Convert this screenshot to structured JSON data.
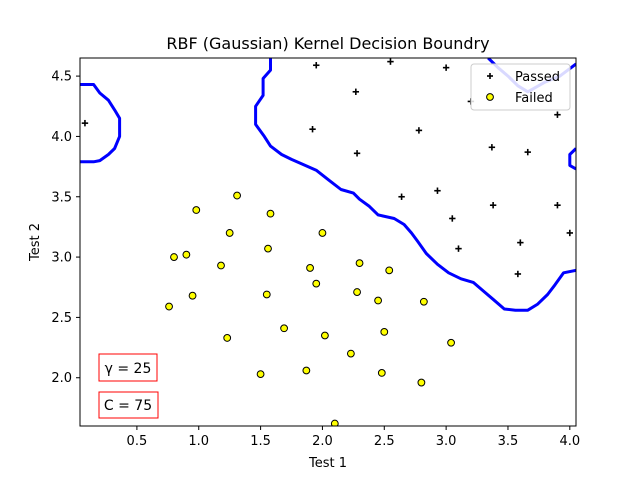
{
  "chart_data": {
    "type": "scatter",
    "title": "RBF (Gaussian)  Kernel Decision Boundry",
    "xlabel": "Test 1",
    "ylabel": "Test 2",
    "xlim": [
      0.04,
      4.05
    ],
    "ylim": [
      1.6,
      4.65
    ],
    "xticks": [
      "0.5",
      "1.0",
      "1.5",
      "2.0",
      "2.5",
      "3.0",
      "3.5",
      "4.0"
    ],
    "yticks": [
      "2.0",
      "2.5",
      "3.0",
      "3.5",
      "4.0",
      "4.5"
    ],
    "grid": false,
    "legend_position": "top-right",
    "series": [
      {
        "name": "Passed",
        "marker": "plus",
        "color": "#000000",
        "points": [
          [
            1.95,
            4.59
          ],
          [
            2.55,
            4.62
          ],
          [
            3.0,
            4.57
          ],
          [
            2.27,
            4.37
          ],
          [
            3.2,
            4.29
          ],
          [
            0.08,
            4.11
          ],
          [
            1.92,
            4.06
          ],
          [
            2.78,
            4.05
          ],
          [
            3.9,
            4.18
          ],
          [
            3.37,
            3.91
          ],
          [
            3.66,
            3.87
          ],
          [
            2.28,
            3.86
          ],
          [
            2.64,
            3.5
          ],
          [
            2.93,
            3.55
          ],
          [
            3.38,
            3.43
          ],
          [
            3.9,
            3.43
          ],
          [
            3.05,
            3.32
          ],
          [
            4.0,
            3.2
          ],
          [
            3.6,
            3.12
          ],
          [
            3.1,
            3.07
          ],
          [
            3.58,
            2.86
          ]
        ]
      },
      {
        "name": "Failed",
        "marker": "circle",
        "color": "#ffff00",
        "points": [
          [
            1.31,
            3.51
          ],
          [
            0.98,
            3.39
          ],
          [
            1.58,
            3.36
          ],
          [
            1.25,
            3.2
          ],
          [
            2.0,
            3.2
          ],
          [
            1.56,
            3.07
          ],
          [
            0.9,
            3.02
          ],
          [
            0.8,
            3.0
          ],
          [
            2.3,
            2.95
          ],
          [
            1.18,
            2.93
          ],
          [
            1.9,
            2.91
          ],
          [
            2.54,
            2.89
          ],
          [
            1.95,
            2.78
          ],
          [
            2.28,
            2.71
          ],
          [
            0.95,
            2.68
          ],
          [
            1.55,
            2.69
          ],
          [
            2.45,
            2.64
          ],
          [
            2.82,
            2.63
          ],
          [
            0.76,
            2.59
          ],
          [
            1.69,
            2.41
          ],
          [
            2.5,
            2.38
          ],
          [
            2.02,
            2.35
          ],
          [
            1.23,
            2.33
          ],
          [
            3.04,
            2.29
          ],
          [
            2.23,
            2.2
          ],
          [
            1.5,
            2.03
          ],
          [
            1.87,
            2.06
          ],
          [
            2.48,
            2.04
          ],
          [
            2.8,
            1.96
          ],
          [
            2.1,
            1.62
          ]
        ]
      }
    ],
    "boundary": {
      "color": "#0000ff",
      "curves": [
        [
          [
            0.04,
            4.43
          ],
          [
            0.15,
            4.43
          ],
          [
            0.2,
            4.36
          ],
          [
            0.27,
            4.3
          ],
          [
            0.32,
            4.22
          ],
          [
            0.36,
            4.15
          ],
          [
            0.36,
            4.0
          ],
          [
            0.32,
            3.9
          ],
          [
            0.27,
            3.85
          ],
          [
            0.2,
            3.8
          ],
          [
            0.15,
            3.79
          ],
          [
            0.04,
            3.79
          ]
        ],
        [
          [
            1.58,
            4.65
          ],
          [
            1.58,
            4.55
          ],
          [
            1.52,
            4.48
          ],
          [
            1.52,
            4.34
          ],
          [
            1.46,
            4.25
          ],
          [
            1.46,
            4.1
          ],
          [
            1.53,
            4.0
          ],
          [
            1.58,
            3.92
          ],
          [
            1.67,
            3.85
          ],
          [
            1.75,
            3.81
          ],
          [
            1.84,
            3.77
          ],
          [
            1.95,
            3.72
          ],
          [
            2.05,
            3.64
          ],
          [
            2.15,
            3.56
          ],
          [
            2.25,
            3.53
          ],
          [
            2.3,
            3.48
          ],
          [
            2.38,
            3.42
          ],
          [
            2.45,
            3.35
          ],
          [
            2.58,
            3.32
          ],
          [
            2.66,
            3.27
          ],
          [
            2.72,
            3.2
          ],
          [
            2.77,
            3.13
          ],
          [
            2.84,
            3.03
          ],
          [
            2.93,
            2.94
          ],
          [
            3.02,
            2.87
          ],
          [
            3.12,
            2.82
          ],
          [
            3.22,
            2.79
          ],
          [
            3.3,
            2.72
          ],
          [
            3.38,
            2.65
          ],
          [
            3.47,
            2.57
          ],
          [
            3.56,
            2.56
          ],
          [
            3.66,
            2.56
          ],
          [
            3.74,
            2.61
          ],
          [
            3.82,
            2.69
          ],
          [
            3.88,
            2.77
          ],
          [
            3.95,
            2.87
          ],
          [
            4.05,
            2.89
          ]
        ],
        [
          [
            3.34,
            4.65
          ],
          [
            3.42,
            4.57
          ],
          [
            3.5,
            4.5
          ],
          [
            3.58,
            4.42
          ],
          [
            3.66,
            4.37
          ],
          [
            3.8,
            4.45
          ],
          [
            3.92,
            4.5
          ],
          [
            4.05,
            4.6
          ]
        ],
        [
          [
            4.05,
            3.9
          ],
          [
            4.0,
            3.85
          ],
          [
            4.0,
            3.76
          ],
          [
            4.05,
            3.73
          ]
        ]
      ]
    },
    "annotations": [
      "γ = 25",
      "C = 75"
    ]
  }
}
